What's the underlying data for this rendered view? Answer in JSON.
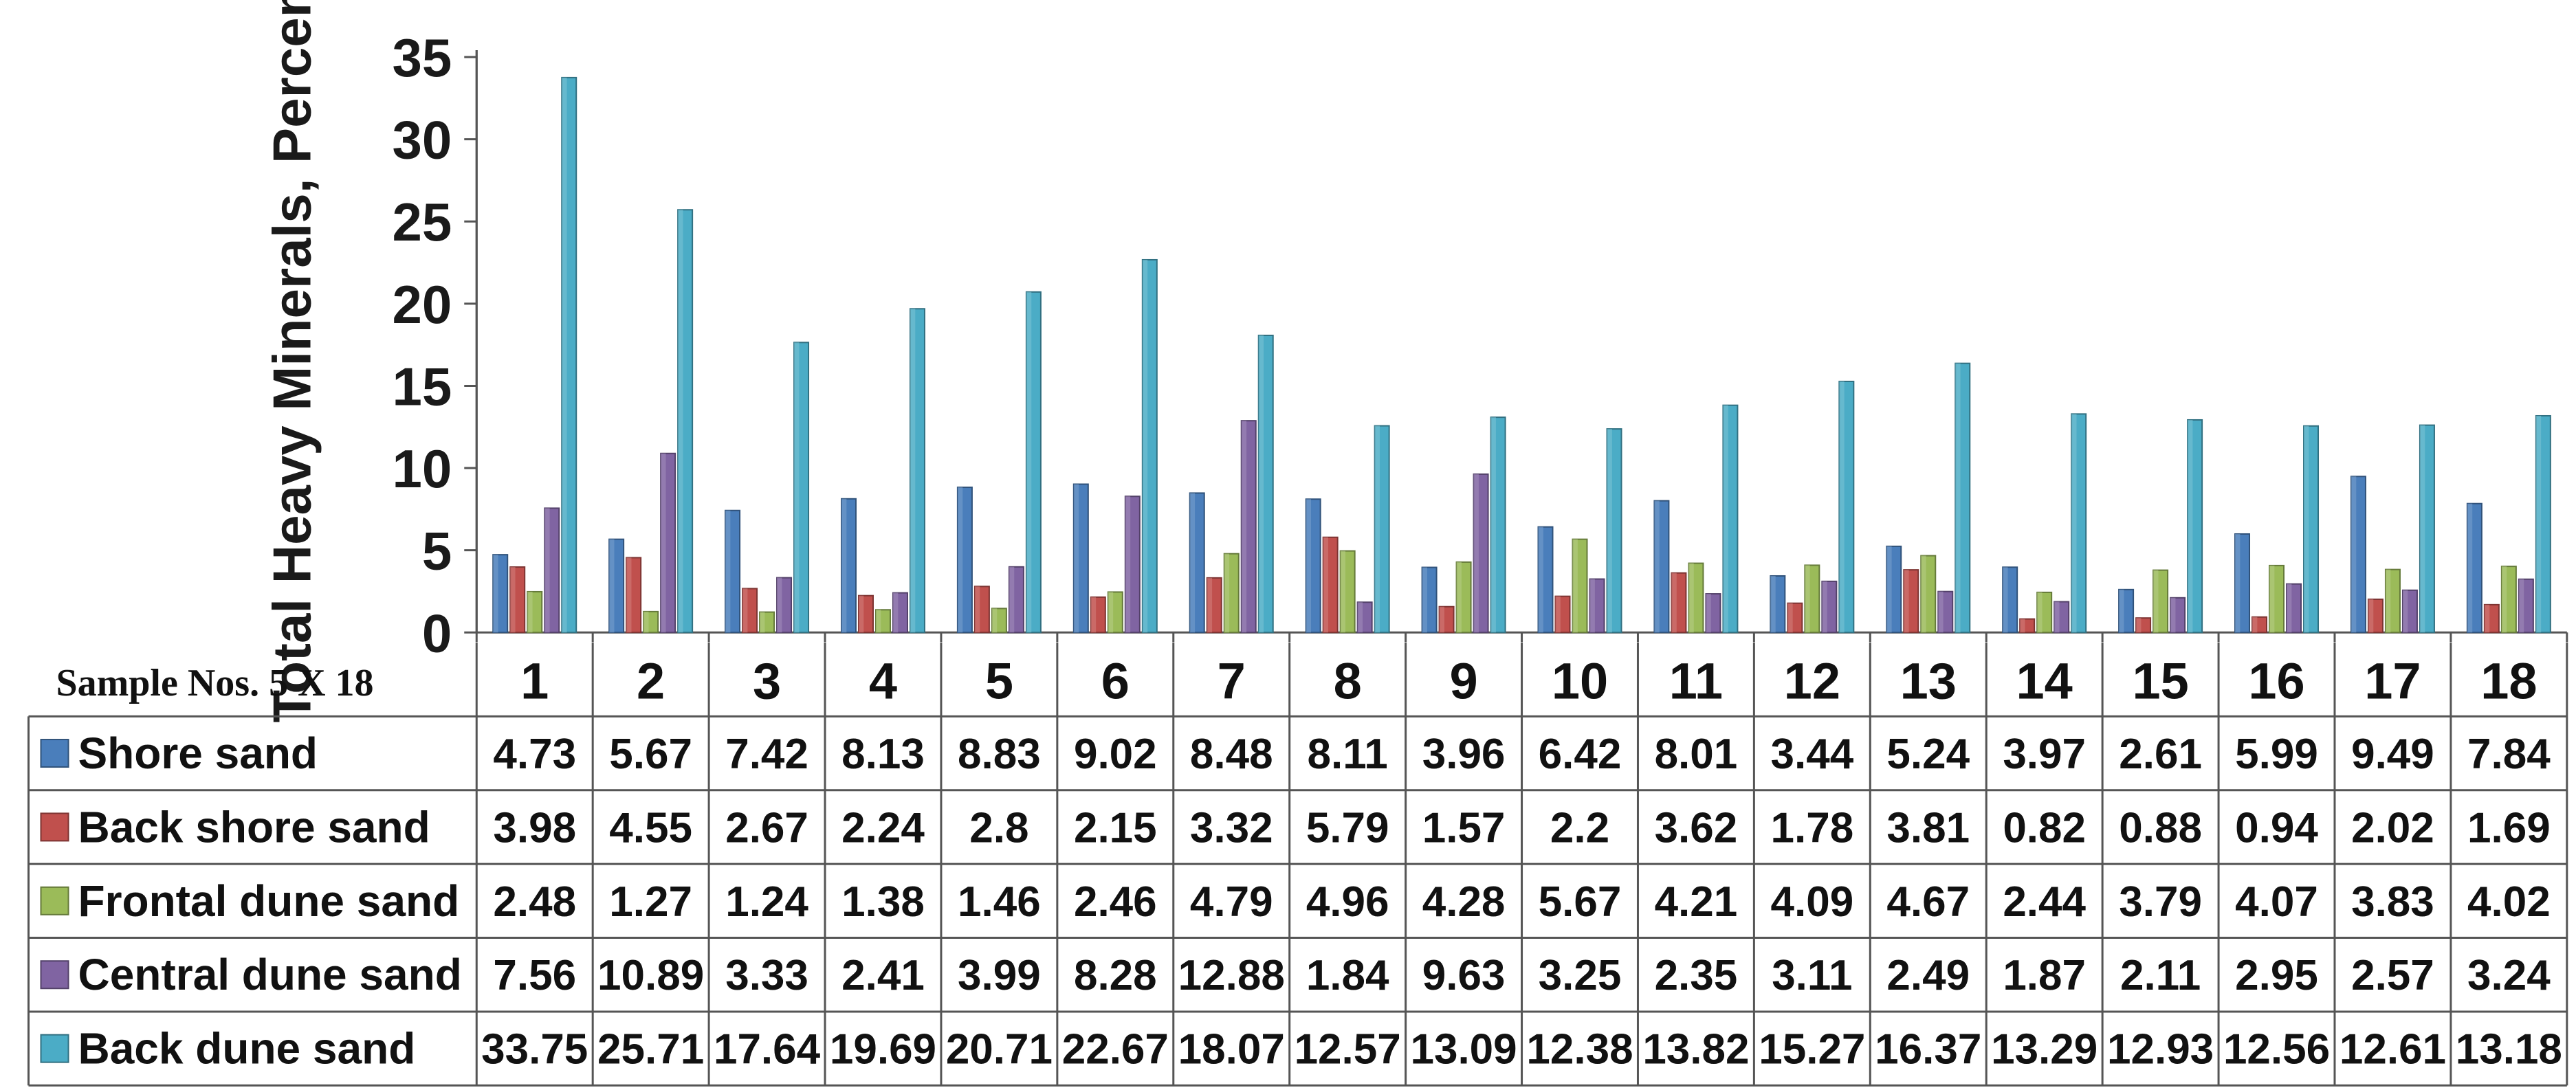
{
  "chart_data": {
    "type": "bar",
    "ylabel": "Total Heavy Minerals, Percent",
    "xlabel": "Sample Nos. 5 X 18",
    "ylim": [
      0,
      35
    ],
    "yticks": [
      "0",
      "5",
      "10",
      "15",
      "20",
      "25",
      "30",
      "35"
    ],
    "grid": false,
    "legend": "data-table-below",
    "categories": [
      "1",
      "2",
      "3",
      "4",
      "5",
      "6",
      "7",
      "8",
      "9",
      "10",
      "11",
      "12",
      "13",
      "14",
      "15",
      "16",
      "17",
      "18"
    ],
    "series": [
      {
        "name": "Shore sand",
        "color": "#4a7ebb",
        "values": [
          4.73,
          5.67,
          7.42,
          8.13,
          8.83,
          9.02,
          8.48,
          8.11,
          3.96,
          6.42,
          8.01,
          3.44,
          5.24,
          3.97,
          2.61,
          5.99,
          9.49,
          7.84
        ],
        "labels": [
          "4.73",
          "5.67",
          "7.42",
          "8.13",
          "8.83",
          "9.02",
          "8.48",
          "8.11",
          "3.96",
          "6.42",
          "8.01",
          "3.44",
          "5.24",
          "3.97",
          "2.61",
          "5.99",
          "9.49",
          "7.84"
        ]
      },
      {
        "name": "Back shore sand",
        "color": "#c0504d",
        "values": [
          3.98,
          4.55,
          2.67,
          2.24,
          2.8,
          2.15,
          3.32,
          5.79,
          1.57,
          2.2,
          3.62,
          1.78,
          3.81,
          0.82,
          0.88,
          0.94,
          2.02,
          1.69
        ],
        "labels": [
          "3.98",
          "4.55",
          "2.67",
          "2.24",
          "2.8",
          "2.15",
          "3.32",
          "5.79",
          "1.57",
          "2.2",
          "3.62",
          "1.78",
          "3.81",
          "0.82",
          "0.88",
          "0.94",
          "2.02",
          "1.69"
        ]
      },
      {
        "name": "Frontal dune sand",
        "color": "#9bbb59",
        "values": [
          2.48,
          1.27,
          1.24,
          1.38,
          1.46,
          2.46,
          4.79,
          4.96,
          4.28,
          5.67,
          4.21,
          4.09,
          4.67,
          2.44,
          3.79,
          4.07,
          3.83,
          4.02
        ],
        "labels": [
          "2.48",
          "1.27",
          "1.24",
          "1.38",
          "1.46",
          "2.46",
          "4.79",
          "4.96",
          "4.28",
          "5.67",
          "4.21",
          "4.09",
          "4.67",
          "2.44",
          "3.79",
          "4.07",
          "3.83",
          "4.02"
        ]
      },
      {
        "name": "Central dune sand",
        "color": "#8064a2",
        "values": [
          7.56,
          10.89,
          3.33,
          2.41,
          3.99,
          8.28,
          12.88,
          1.84,
          9.63,
          3.25,
          2.35,
          3.11,
          2.49,
          1.87,
          2.11,
          2.95,
          2.57,
          3.24
        ],
        "labels": [
          "7.56",
          "10.89",
          "3.33",
          "2.41",
          "3.99",
          "8.28",
          "12.88",
          "1.84",
          "9.63",
          "3.25",
          "2.35",
          "3.11",
          "2.49",
          "1.87",
          "2.11",
          "2.95",
          "2.57",
          "3.24"
        ]
      },
      {
        "name": "Back dune sand",
        "color": "#4bacc6",
        "values": [
          33.75,
          25.71,
          17.64,
          19.69,
          20.71,
          22.67,
          18.07,
          12.57,
          13.09,
          12.38,
          13.82,
          15.27,
          16.37,
          13.29,
          12.93,
          12.56,
          12.61,
          13.18
        ],
        "labels": [
          "33.75",
          "25.71",
          "17.64",
          "19.69",
          "20.71",
          "22.67",
          "18.07",
          "12.57",
          "13.09",
          "12.38",
          "13.82",
          "15.27",
          "16.37",
          "13.29",
          "12.93",
          "12.56",
          "12.61",
          "13.18"
        ]
      }
    ]
  }
}
